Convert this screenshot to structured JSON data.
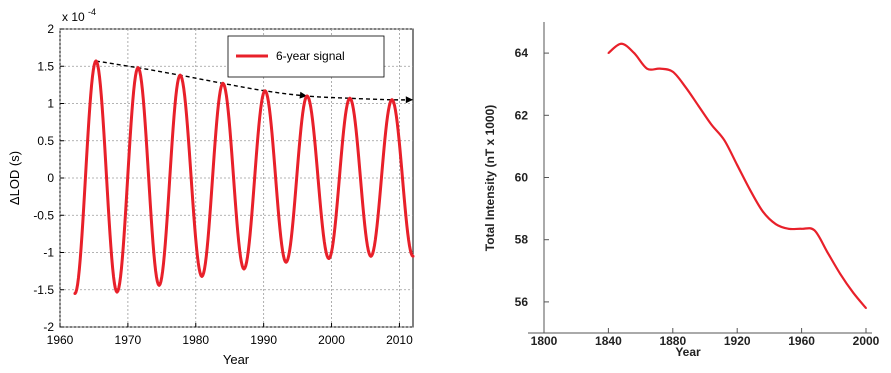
{
  "chart_data": [
    {
      "type": "line",
      "xlabel": "Year",
      "ylabel": "ΔLOD (s)",
      "y_multiplier_label": "x 10",
      "y_multiplier_exponent": "-4",
      "xlim": [
        1960,
        2012
      ],
      "ylim": [
        -2,
        2
      ],
      "xticks": [
        1960,
        1970,
        1980,
        1990,
        2000,
        2010
      ],
      "yticks": [
        -2,
        -1.5,
        -1,
        -0.5,
        0,
        0.5,
        1,
        1.5,
        2
      ],
      "grid": true,
      "legend_position": "top-right",
      "series": [
        {
          "name": "6-year signal",
          "color": "#e8202a",
          "points": [
            [
              1962.2,
              -1.55
            ],
            [
              1965.3,
              1.57
            ],
            [
              1968.4,
              -1.53
            ],
            [
              1971.5,
              1.48
            ],
            [
              1974.6,
              -1.44
            ],
            [
              1977.7,
              1.38
            ],
            [
              1980.9,
              -1.32
            ],
            [
              1984.0,
              1.27
            ],
            [
              1987.1,
              -1.22
            ],
            [
              1990.2,
              1.17
            ],
            [
              1993.3,
              -1.13
            ],
            [
              1996.4,
              1.1
            ],
            [
              1999.6,
              -1.08
            ],
            [
              2002.7,
              1.07
            ],
            [
              2005.8,
              -1.05
            ],
            [
              2008.9,
              1.05
            ],
            [
              2012.0,
              -1.05
            ]
          ]
        }
      ],
      "annotations": [
        {
          "type": "dashed-arrow-trend",
          "color": "#000000",
          "points": [
            [
              1965.3,
              1.57
            ],
            [
              1971.5,
              1.48
            ],
            [
              1977.7,
              1.38
            ],
            [
              1984.0,
              1.27
            ],
            [
              1990.2,
              1.17
            ],
            [
              1996.4,
              1.1
            ],
            [
              2002.7,
              1.07
            ],
            [
              2008.9,
              1.05
            ],
            [
              2012.0,
              1.05
            ]
          ],
          "arrowheads_at_x": [
            1996.4,
            2012.0
          ]
        }
      ]
    },
    {
      "type": "line",
      "xlabel": "Year",
      "ylabel": "Total Intensity (nT x 1000)",
      "xlim": [
        1800,
        2000
      ],
      "ylim": [
        55,
        65
      ],
      "xticks": [
        1800,
        1840,
        1880,
        1920,
        1960,
        2000
      ],
      "yticks": [
        56,
        58,
        60,
        62,
        64
      ],
      "grid": false,
      "series": [
        {
          "color": "#e8202a",
          "x": [
            1840,
            1848,
            1856,
            1864,
            1872,
            1880,
            1888,
            1896,
            1904,
            1912,
            1920,
            1928,
            1936,
            1944,
            1952,
            1960,
            1968,
            1976,
            1984,
            1992,
            2000
          ],
          "values": [
            64.0,
            64.3,
            64.0,
            63.5,
            63.5,
            63.4,
            62.9,
            62.3,
            61.7,
            61.2,
            60.4,
            59.6,
            58.9,
            58.5,
            58.35,
            58.35,
            58.3,
            57.6,
            56.9,
            56.3,
            55.8
          ]
        }
      ]
    }
  ]
}
